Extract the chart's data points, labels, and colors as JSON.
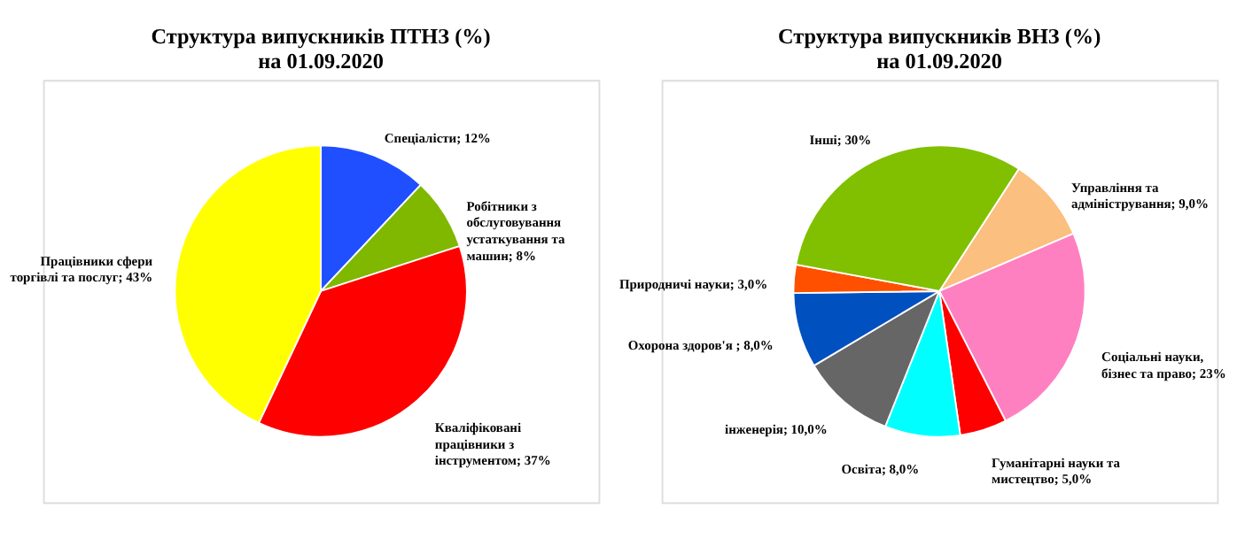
{
  "chart_data": [
    {
      "type": "pie",
      "title": "Структура випускників ПТНЗ (%)\nна 01.09.2020",
      "categories": [
        "Спеціалісти",
        "Робітники з обслуговування устаткування та машин",
        "Кваліфіковані працівники з інструментом",
        "Працівники сфери торгівлі та послуг"
      ],
      "values": [
        12,
        8,
        37,
        43
      ],
      "value_labels": [
        "12%",
        "8%",
        "37%",
        "43%"
      ],
      "colors": [
        "#1f4fff",
        "#80b800",
        "#ff0000",
        "#ffff00"
      ]
    },
    {
      "type": "pie",
      "title": "Структура випускників ВНЗ (%)\nна 01.09.2020",
      "categories": [
        "Управління та адміністрування",
        "Соціальні науки, бізнес та право",
        "Гуманітарні науки та мистецтво",
        "Освіта",
        "інженерія",
        "Охорона здоров'я ",
        "Природничі науки",
        "Інші"
      ],
      "values": [
        9.0,
        23,
        5.0,
        8.0,
        10.0,
        8.0,
        3.0,
        30
      ],
      "value_labels": [
        "9,0%",
        "23%",
        "5,0%",
        "8,0%",
        "10,0%",
        "8,0%",
        "3,0%",
        "30%"
      ],
      "colors": [
        "#fbbf80",
        "#ff80c0",
        "#ff0000",
        "#00ffff",
        "#666666",
        "#0050c0",
        "#ff5000",
        "#80c000"
      ]
    }
  ]
}
